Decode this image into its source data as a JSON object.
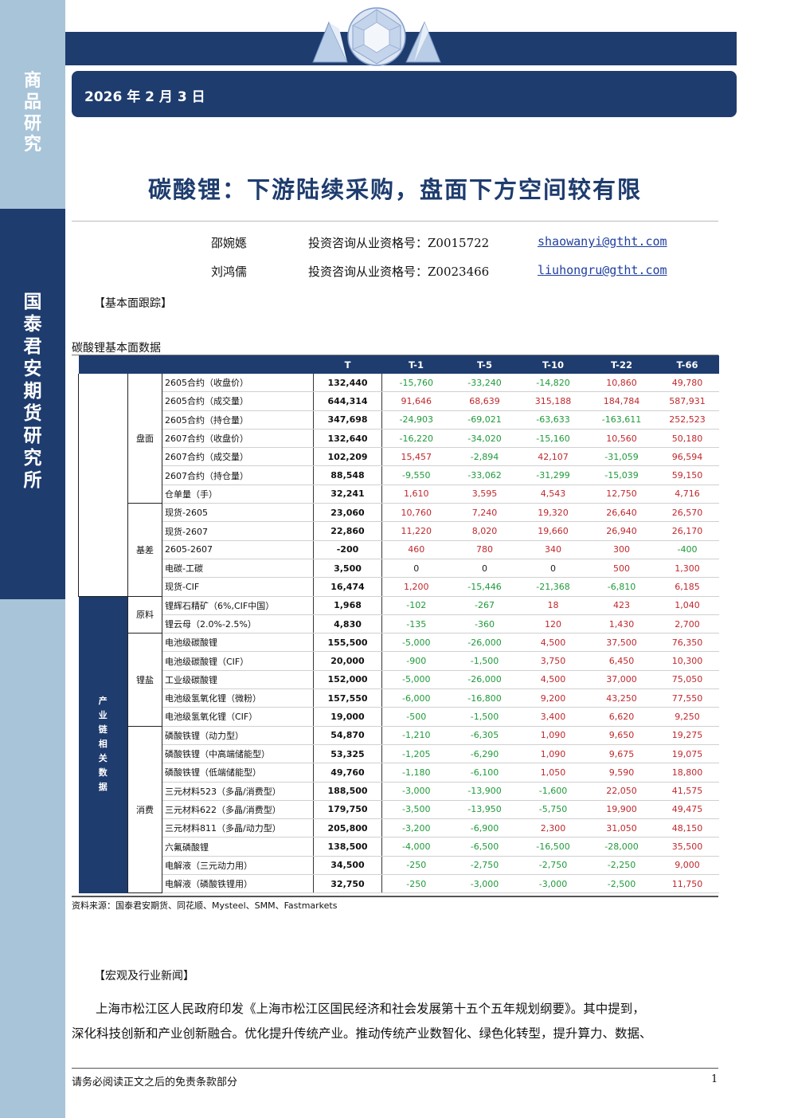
{
  "sidebar": {
    "category": [
      "商",
      "品",
      "研",
      "究"
    ],
    "company": [
      "国",
      "泰",
      "君",
      "安",
      "期",
      "货",
      "研",
      "究",
      "所"
    ]
  },
  "header": {
    "date": "2026 年 2 月 3 日"
  },
  "title": "碳酸锂：下游陆续采购，盘面下方空间较有限",
  "analysts": [
    {
      "name": "邵婉嫕",
      "cert": "投资咨询从业资格号：Z0015722",
      "email": "shaowanyi@gtht.com"
    },
    {
      "name": "刘鸿儒",
      "cert": "投资咨询从业资格号：Z0023466",
      "email": "liuhongru@gtht.com"
    }
  ],
  "sections": {
    "fundamental": "【基本面跟踪】",
    "news": "【宏观及行业新闻】"
  },
  "table": {
    "title": "碳酸锂基本面数据",
    "headers": [
      "T",
      "T-1",
      "T-5",
      "T-10",
      "T-22",
      "T-66"
    ],
    "supply_chain_label": [
      "产",
      "业",
      "链",
      "相",
      "关",
      "数",
      "据"
    ],
    "groups": [
      {
        "name": "盘面",
        "rows": [
          {
            "label": "2605合约（收盘价）",
            "values": [
              "132,440",
              "-15,760",
              "-33,240",
              "-14,820",
              "10,860",
              "49,780"
            ]
          },
          {
            "label": "2605合约（成交量）",
            "values": [
              "644,314",
              "91,646",
              "68,639",
              "315,188",
              "184,784",
              "587,931"
            ]
          },
          {
            "label": "2605合约（持仓量）",
            "values": [
              "347,698",
              "-24,903",
              "-69,021",
              "-63,633",
              "-163,611",
              "252,523"
            ]
          },
          {
            "label": "2607合约（收盘价）",
            "values": [
              "132,640",
              "-16,220",
              "-34,020",
              "-15,160",
              "10,560",
              "50,180"
            ]
          },
          {
            "label": "2607合约（成交量）",
            "values": [
              "102,209",
              "15,457",
              "-2,894",
              "42,107",
              "-31,059",
              "96,594"
            ]
          },
          {
            "label": "2607合约（持仓量）",
            "values": [
              "88,548",
              "-9,550",
              "-33,062",
              "-31,299",
              "-15,039",
              "59,150"
            ]
          },
          {
            "label": "仓单量（手）",
            "values": [
              "32,241",
              "1,610",
              "3,595",
              "4,543",
              "12,750",
              "4,716"
            ]
          }
        ]
      },
      {
        "name": "基差",
        "rows": [
          {
            "label": "现货-2605",
            "values": [
              "23,060",
              "10,760",
              "7,240",
              "19,320",
              "26,640",
              "26,570"
            ]
          },
          {
            "label": "现货-2607",
            "values": [
              "22,860",
              "11,220",
              "8,020",
              "19,660",
              "26,940",
              "26,170"
            ]
          },
          {
            "label": "2605-2607",
            "values": [
              "-200",
              "460",
              "780",
              "340",
              "300",
              "-400"
            ]
          },
          {
            "label": "电碳-工碳",
            "values": [
              "3,500",
              "0",
              "0",
              "0",
              "500",
              "1,300"
            ]
          },
          {
            "label": "现货-CIF",
            "values": [
              "16,474",
              "1,200",
              "-15,446",
              "-21,368",
              "-6,810",
              "6,185"
            ]
          }
        ]
      },
      {
        "name": "原料",
        "rows": [
          {
            "label": "锂辉石精矿（6%,CIF中国）",
            "values": [
              "1,968",
              "-102",
              "-267",
              "18",
              "423",
              "1,040"
            ]
          },
          {
            "label": "锂云母（2.0%-2.5%）",
            "values": [
              "4,830",
              "-135",
              "-360",
              "120",
              "1,430",
              "2,700"
            ]
          }
        ]
      },
      {
        "name": "锂盐",
        "rows": [
          {
            "label": "电池级碳酸锂",
            "values": [
              "155,500",
              "-5,000",
              "-26,000",
              "4,500",
              "37,500",
              "76,350"
            ]
          },
          {
            "label": "电池级碳酸锂（CIF）",
            "values": [
              "20,000",
              "-900",
              "-1,500",
              "3,750",
              "6,450",
              "10,300"
            ]
          },
          {
            "label": "工业级碳酸锂",
            "values": [
              "152,000",
              "-5,000",
              "-26,000",
              "4,500",
              "37,000",
              "75,050"
            ]
          },
          {
            "label": "电池级氢氧化锂（微粉）",
            "values": [
              "157,550",
              "-6,000",
              "-16,800",
              "9,200",
              "43,250",
              "77,550"
            ]
          },
          {
            "label": "电池级氢氧化锂（CIF）",
            "values": [
              "19,000",
              "-500",
              "-1,500",
              "3,400",
              "6,620",
              "9,250"
            ]
          }
        ]
      },
      {
        "name": "消费",
        "rows": [
          {
            "label": "磷酸铁锂（动力型）",
            "values": [
              "54,870",
              "-1,210",
              "-6,305",
              "1,090",
              "9,650",
              "19,275"
            ]
          },
          {
            "label": "磷酸铁锂（中高端储能型）",
            "values": [
              "53,325",
              "-1,205",
              "-6,290",
              "1,090",
              "9,675",
              "19,075"
            ]
          },
          {
            "label": "磷酸铁锂（低端储能型）",
            "values": [
              "49,760",
              "-1,180",
              "-6,100",
              "1,050",
              "9,590",
              "18,800"
            ]
          },
          {
            "label": "三元材料523（多晶/消费型）",
            "values": [
              "188,500",
              "-3,000",
              "-13,900",
              "-1,600",
              "22,050",
              "41,575"
            ]
          },
          {
            "label": "三元材料622（多晶/消费型）",
            "values": [
              "179,750",
              "-3,500",
              "-13,950",
              "-5,750",
              "19,900",
              "49,475"
            ]
          },
          {
            "label": "三元材料811（多晶/动力型）",
            "values": [
              "205,800",
              "-3,200",
              "-6,900",
              "2,300",
              "31,050",
              "48,150"
            ]
          },
          {
            "label": "六氟磷酸锂",
            "values": [
              "138,500",
              "-4,000",
              "-6,500",
              "-16,500",
              "-28,000",
              "35,500"
            ]
          },
          {
            "label": "电解液（三元动力用）",
            "values": [
              "34,500",
              "-250",
              "-2,750",
              "-2,750",
              "-2,250",
              "9,000"
            ]
          },
          {
            "label": "电解液（磷酸铁锂用）",
            "values": [
              "32,750",
              "-250",
              "-3,000",
              "-3,000",
              "-2,500",
              "11,750"
            ]
          }
        ]
      }
    ],
    "source": "资料来源：国泰君安期货、同花顺、Mysteel、SMM、Fastmarkets"
  },
  "news": [
    "上海市松江区人民政府印发《上海市松江区国民经济和社会发展第十五个五年规划纲要》。其中提到，",
    "深化科技创新和产业创新融合。优化提升传统产业。推动传统产业数智化、绿色化转型，提升算力、数据、"
  ],
  "footer": {
    "disclaimer": "请务必阅读正文之后的免责条款部分",
    "page": "1"
  },
  "colors": {
    "navy": "#1e3c6e",
    "sidebar_light": "#a8c4d8",
    "positive": "#c0282d",
    "negative": "#1f9a3a"
  }
}
